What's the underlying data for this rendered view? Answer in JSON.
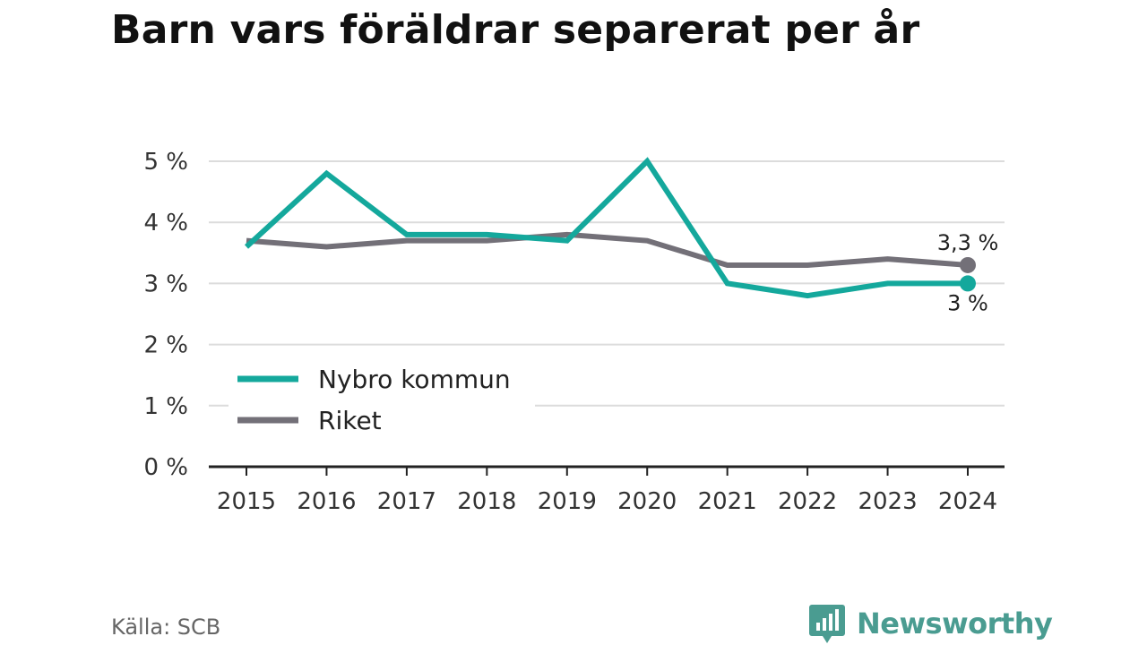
{
  "source": "Källa: SCB",
  "brand": {
    "name": "Newsworthy",
    "icon": "bar-chart-logo-icon",
    "color": "#4a9c91"
  },
  "chart_data": {
    "type": "line",
    "title": "Barn vars föräldrar separerat per år",
    "categories": [
      "2015",
      "2016",
      "2017",
      "2018",
      "2019",
      "2020",
      "2021",
      "2022",
      "2023",
      "2024"
    ],
    "ylim": [
      0,
      5
    ],
    "yticks": [
      0,
      1,
      2,
      3,
      4,
      5
    ],
    "ytick_labels": [
      "0 %",
      "1 %",
      "2 %",
      "3 %",
      "4 %",
      "5 %"
    ],
    "grid": true,
    "legend_position": "bottom-left",
    "series": [
      {
        "name": "Nybro kommun",
        "color": "#14a89c",
        "values": [
          3.6,
          4.8,
          3.8,
          3.8,
          3.7,
          5.0,
          3.0,
          2.8,
          3.0,
          3.0
        ],
        "end_label": "3 %"
      },
      {
        "name": "Riket",
        "color": "#737078",
        "values": [
          3.7,
          3.6,
          3.7,
          3.7,
          3.8,
          3.7,
          3.3,
          3.3,
          3.4,
          3.3
        ],
        "end_label": "3,3 %"
      }
    ]
  }
}
